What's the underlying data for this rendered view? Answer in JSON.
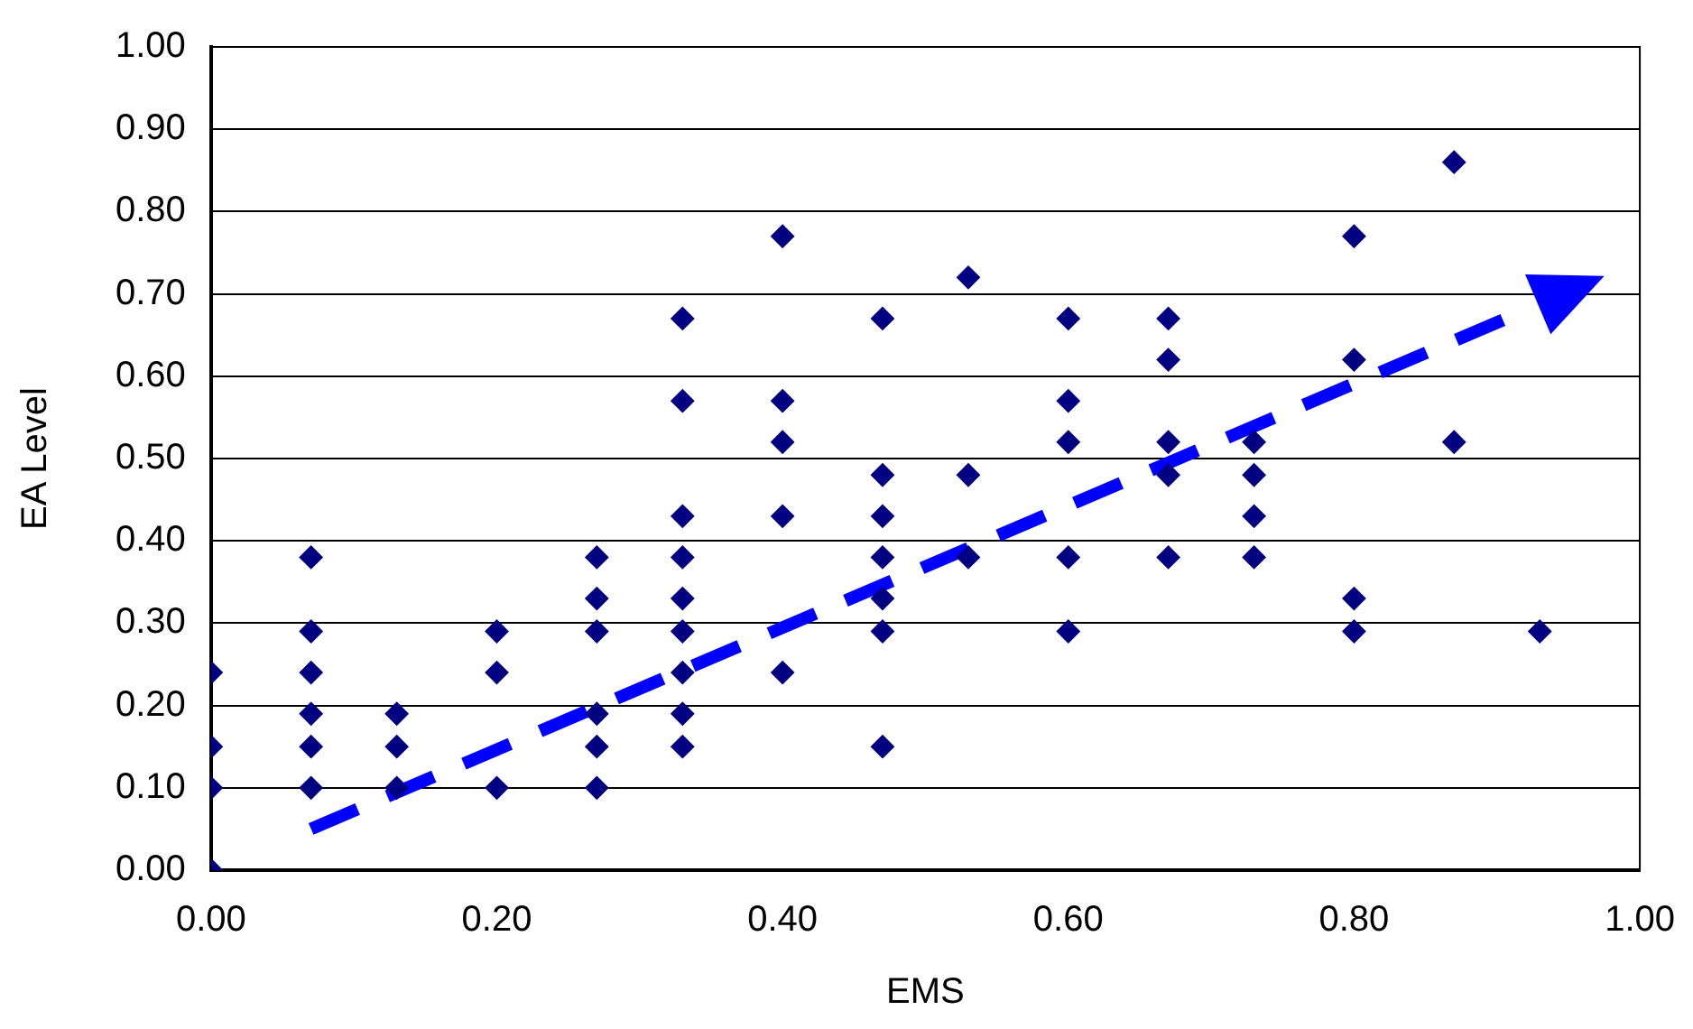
{
  "chart_data": {
    "type": "scatter",
    "xlabel": "EMS",
    "ylabel": "EA Level",
    "marker": "diamond",
    "grid": "y",
    "legend": false,
    "xlim": [
      0,
      1
    ],
    "ylim": [
      0,
      1
    ],
    "xticks": [
      {
        "value": 0,
        "label": "0.00"
      },
      {
        "value": 0.2,
        "label": "0.20"
      },
      {
        "value": 0.4,
        "label": "0.40"
      },
      {
        "value": 0.6,
        "label": "0.60"
      },
      {
        "value": 0.8,
        "label": "0.80"
      },
      {
        "value": 1,
        "label": "1.00"
      }
    ],
    "yticks": [
      {
        "value": 0,
        "label": "0.00"
      },
      {
        "value": 0.1,
        "label": "0.10"
      },
      {
        "value": 0.2,
        "label": "0.20"
      },
      {
        "value": 0.3,
        "label": "0.30"
      },
      {
        "value": 0.4,
        "label": "0.40"
      },
      {
        "value": 0.5,
        "label": "0.50"
      },
      {
        "value": 0.6,
        "label": "0.60"
      },
      {
        "value": 0.7,
        "label": "0.70"
      },
      {
        "value": 0.8,
        "label": "0.80"
      },
      {
        "value": 0.9,
        "label": "0.90"
      },
      {
        "value": 1,
        "label": "1.00"
      }
    ],
    "series": [
      {
        "color": "#000080",
        "x": [
          0,
          0,
          0,
          0,
          0.07,
          0.07,
          0.07,
          0.07,
          0.07,
          0.07,
          0.13,
          0.13,
          0.13,
          0.2,
          0.2,
          0.2,
          0.27,
          0.27,
          0.27,
          0.27,
          0.27,
          0.27,
          0.33,
          0.33,
          0.33,
          0.33,
          0.33,
          0.33,
          0.33,
          0.33,
          0.33,
          0.4,
          0.4,
          0.4,
          0.4,
          0.4,
          0.47,
          0.47,
          0.47,
          0.47,
          0.47,
          0.47,
          0.47,
          0.53,
          0.53,
          0.53,
          0.6,
          0.6,
          0.6,
          0.6,
          0.6,
          0.67,
          0.67,
          0.67,
          0.67,
          0.67,
          0.73,
          0.73,
          0.73,
          0.73,
          0.8,
          0.8,
          0.8,
          0.8,
          0.87,
          0.87,
          0.93
        ],
        "values": [
          0,
          0.1,
          0.15,
          0.24,
          0.38,
          0.29,
          0.24,
          0.19,
          0.15,
          0.1,
          0.19,
          0.15,
          0.1,
          0.29,
          0.24,
          0.1,
          0.38,
          0.33,
          0.29,
          0.19,
          0.15,
          0.1,
          0.67,
          0.57,
          0.43,
          0.38,
          0.33,
          0.29,
          0.24,
          0.19,
          0.15,
          0.77,
          0.57,
          0.52,
          0.43,
          0.24,
          0.67,
          0.48,
          0.43,
          0.38,
          0.33,
          0.29,
          0.15,
          0.72,
          0.48,
          0.38,
          0.67,
          0.57,
          0.52,
          0.38,
          0.29,
          0.67,
          0.62,
          0.52,
          0.48,
          0.38,
          0.52,
          0.48,
          0.43,
          0.38,
          0.77,
          0.62,
          0.33,
          0.29,
          0.86,
          0.52,
          0.29
        ]
      },
      {
        "type": "line",
        "color": "#0000ff",
        "line_style": "dashed",
        "marker": "none",
        "x": [
          0.07,
          0.92
        ],
        "values": [
          0.05,
          0.68
        ]
      }
    ]
  }
}
